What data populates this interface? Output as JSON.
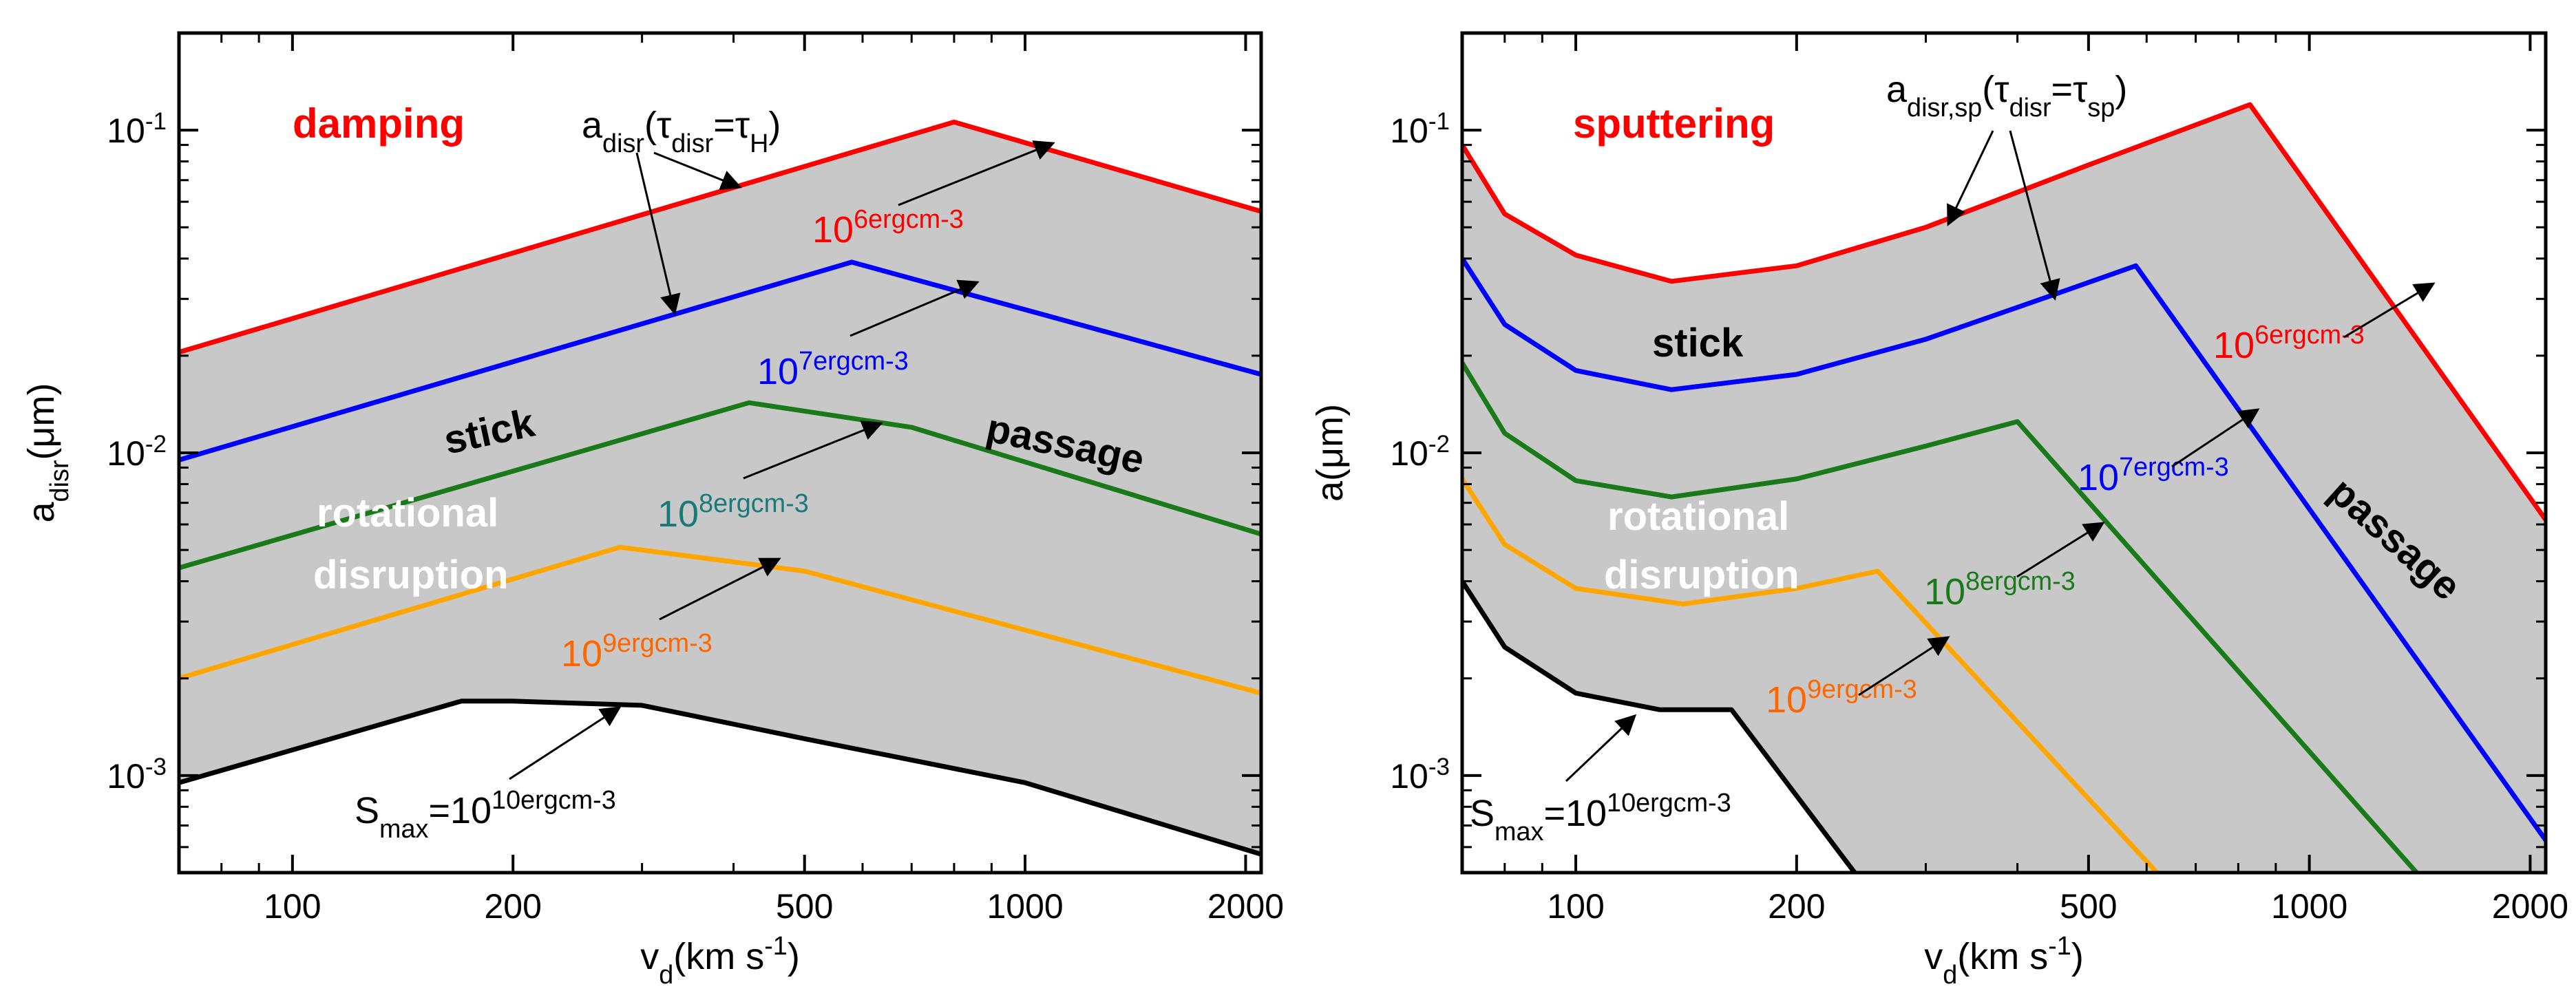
{
  "chart_data": [
    {
      "type": "line",
      "panel": "left",
      "title": "damping",
      "xlabel": "v_d(km s^-1)",
      "ylabel": "a_disr(μm)",
      "xscale": "log",
      "yscale": "log",
      "xlim": [
        70,
        2100
      ],
      "ylim": [
        0.0005,
        0.2
      ],
      "x_ticks": [
        "100",
        "200",
        "500",
        "1000",
        "2000"
      ],
      "y_ticks": [
        "10^-3",
        "10^-2",
        "10^-1"
      ],
      "fill": "#c8c8c8",
      "series": [
        {
          "name": "10^6ergcm^-3",
          "color": "#ff0000",
          "x": [
            70,
            800,
            2100
          ],
          "y": [
            0.0205,
            0.106,
            0.056
          ]
        },
        {
          "name": "10^7ergcm^-3",
          "color": "#0000ff",
          "x": [
            70,
            580,
            2100
          ],
          "y": [
            0.0095,
            0.039,
            0.0175
          ]
        },
        {
          "name": "10^8ergcm^-3",
          "color": "#1a7a1a",
          "x": [
            70,
            420,
            700,
            2100
          ],
          "y": [
            0.0044,
            0.0143,
            0.012,
            0.0056
          ]
        },
        {
          "name": "10^9ergcm^-3",
          "color": "#ffa500",
          "x": [
            70,
            280,
            500,
            2100
          ],
          "y": [
            0.002,
            0.0051,
            0.0043,
            0.0018
          ]
        },
        {
          "name": "S_max=10^10ergcm^-3",
          "color": "#000000",
          "x": [
            70,
            170,
            200,
            300,
            500,
            1000,
            2100
          ],
          "y": [
            0.00095,
            0.0017,
            0.0017,
            0.00165,
            0.0013,
            0.00095,
            0.00057
          ]
        }
      ],
      "annotations": [
        {
          "id": "adisr",
          "text": "a_disr(τ_disr=τ_H)",
          "color": "#000000"
        },
        {
          "id": "l6",
          "text": "10^6ergcm^-3",
          "color": "#ff0000"
        },
        {
          "id": "l7",
          "text": "10^7ergcm^-3",
          "color": "#0000ff"
        },
        {
          "id": "l8",
          "text": "10^8ergcm^-3",
          "color": "#1a7a7a"
        },
        {
          "id": "l9",
          "text": "10^9ergcm^-3",
          "color": "#ff6600"
        },
        {
          "id": "smax",
          "text": "S_max=10^10ergcm^-3",
          "color": "#000000"
        },
        {
          "id": "stick",
          "text": "stick",
          "color": "#000000"
        },
        {
          "id": "passage",
          "text": "passage",
          "color": "#000000"
        },
        {
          "id": "rot1",
          "text": "rotational",
          "color": "#ffffff"
        },
        {
          "id": "rot2",
          "text": "disruption",
          "color": "#ffffff"
        }
      ]
    },
    {
      "type": "line",
      "panel": "right",
      "title": "sputtering",
      "xlabel": "v_d(km s^-1)",
      "ylabel": "a(μm)",
      "xscale": "log",
      "yscale": "log",
      "xlim": [
        70,
        2100
      ],
      "ylim": [
        0.0005,
        0.2
      ],
      "x_ticks": [
        "100",
        "200",
        "500",
        "1000",
        "2000"
      ],
      "y_ticks": [
        "10^-3",
        "10^-2",
        "10^-1"
      ],
      "fill": "#c8c8c8",
      "series": [
        {
          "name": "10^6ergcm^-3",
          "color": "#ff0000",
          "x": [
            70,
            80,
            100,
            135,
            200,
            300,
            500,
            830,
            2100
          ],
          "y": [
            0.09,
            0.055,
            0.041,
            0.034,
            0.038,
            0.05,
            0.078,
            0.12,
            0.0062
          ]
        },
        {
          "name": "10^7ergcm^-3",
          "color": "#0000ff",
          "x": [
            70,
            80,
            100,
            135,
            200,
            300,
            450,
            580,
            2100
          ],
          "y": [
            0.04,
            0.025,
            0.018,
            0.0157,
            0.0175,
            0.0225,
            0.031,
            0.038,
            0.00063
          ]
        },
        {
          "name": "10^8ergcm^-3",
          "color": "#1a7a1a",
          "x": [
            70,
            80,
            100,
            135,
            200,
            300,
            400,
            1400
          ],
          "y": [
            0.019,
            0.0115,
            0.0082,
            0.0073,
            0.0083,
            0.0105,
            0.0125,
            0.0005
          ]
        },
        {
          "name": "10^9ergcm^-3",
          "color": "#ffa500",
          "x": [
            70,
            80,
            100,
            140,
            200,
            258,
            620
          ],
          "y": [
            0.0083,
            0.0052,
            0.0038,
            0.0034,
            0.0038,
            0.0043,
            0.0005
          ]
        },
        {
          "name": "S_max=10^10ergcm^-3",
          "color": "#000000",
          "x": [
            70,
            80,
            100,
            130,
            163,
            240
          ],
          "y": [
            0.004,
            0.0025,
            0.0018,
            0.0016,
            0.0016,
            0.0005
          ]
        }
      ],
      "annotations": [
        {
          "id": "adisr",
          "text": "a_disr,sp(τ_disr=τ_sp)",
          "color": "#000000"
        },
        {
          "id": "l6",
          "text": "10^6ergcm^-3",
          "color": "#ff0000"
        },
        {
          "id": "l7",
          "text": "10^7ergcm^-3",
          "color": "#0000ff"
        },
        {
          "id": "l8",
          "text": "10^8ergcm^-3",
          "color": "#1a7a1a"
        },
        {
          "id": "l9",
          "text": "10^9ergcm^-3",
          "color": "#ff6600"
        },
        {
          "id": "smax",
          "text": "S_max=10^10ergcm^-3",
          "color": "#000000"
        },
        {
          "id": "stick",
          "text": "stick",
          "color": "#000000"
        },
        {
          "id": "passage",
          "text": "passage",
          "color": "#000000"
        },
        {
          "id": "rot1",
          "text": "rotational",
          "color": "#ffffff"
        },
        {
          "id": "rot2",
          "text": "disruption",
          "color": "#ffffff"
        }
      ]
    }
  ]
}
